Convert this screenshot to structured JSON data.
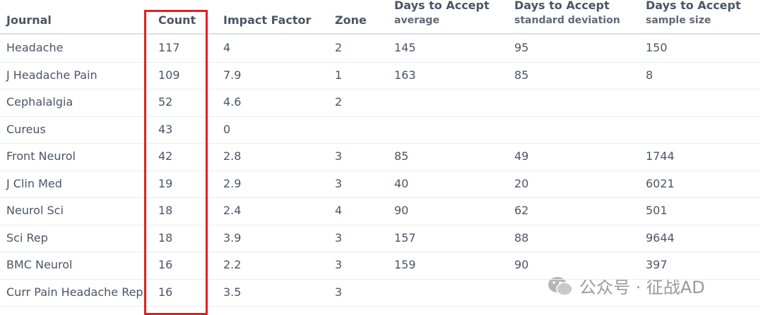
{
  "table": {
    "columns": [
      {
        "title": "Journal",
        "subtitle": null
      },
      {
        "title": "Count",
        "subtitle": null
      },
      {
        "title": "Impact Factor",
        "subtitle": null
      },
      {
        "title": "Zone",
        "subtitle": null
      },
      {
        "title": "Days to Accept",
        "subtitle": "average"
      },
      {
        "title": "Days to Accept",
        "subtitle": "standard deviation"
      },
      {
        "title": "Days to Accept",
        "subtitle": "sample size"
      }
    ],
    "rows": [
      [
        "Headache",
        117,
        4,
        2,
        145,
        95,
        150
      ],
      [
        "J Headache Pain",
        109,
        7.9,
        1,
        163,
        85,
        8
      ],
      [
        "Cephalalgia",
        52,
        4.6,
        2,
        null,
        null,
        null
      ],
      [
        "Cureus",
        43,
        0,
        null,
        null,
        null,
        null
      ],
      [
        "Front Neurol",
        42,
        2.8,
        3,
        85,
        49,
        1744
      ],
      [
        "J Clin Med",
        19,
        2.9,
        3,
        40,
        20,
        6021
      ],
      [
        "Neurol Sci",
        18,
        2.4,
        4,
        90,
        62,
        501
      ],
      [
        "Sci Rep",
        18,
        3.9,
        3,
        157,
        88,
        9644
      ],
      [
        "BMC Neurol",
        16,
        2.2,
        3,
        159,
        90,
        397
      ],
      [
        "Curr Pain Headache Rep",
        16,
        3.5,
        3,
        null,
        null,
        null
      ]
    ]
  },
  "watermark": "公众号 · 征战AD"
}
